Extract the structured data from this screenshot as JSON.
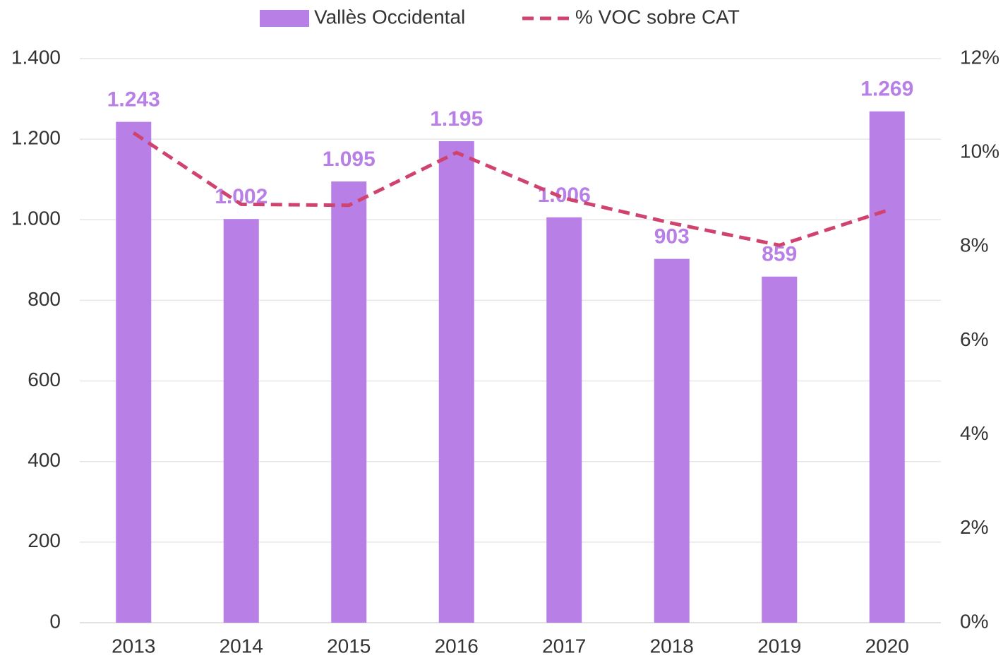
{
  "chart_data": {
    "type": "bar",
    "categories": [
      "2013",
      "2014",
      "2015",
      "2016",
      "2017",
      "2018",
      "2019",
      "2020"
    ],
    "series": [
      {
        "name": "Vallès Occidental",
        "type": "bar",
        "color": "#b87fe6",
        "values": [
          1243,
          1002,
          1095,
          1195,
          1006,
          903,
          859,
          1269
        ],
        "value_labels": [
          "1.243",
          "1.002",
          "1.095",
          "1.195",
          "1.006",
          "903",
          "859",
          "1.269"
        ]
      },
      {
        "name": "% VOC sobre CAT",
        "type": "line",
        "axis": "y2",
        "color": "#d1436f",
        "dashed": true,
        "values": [
          10.42,
          8.9,
          8.88,
          10.0,
          9.03,
          8.5,
          8.03,
          8.77
        ]
      }
    ],
    "ylim": [
      0,
      1400
    ],
    "yticks": [
      0,
      200,
      400,
      600,
      800,
      {
        "value": 1000,
        "label": "1.000"
      },
      {
        "value": 1200,
        "label": "1.200"
      },
      {
        "value": 1400,
        "label": "1.400"
      }
    ],
    "y2lim": [
      0,
      12
    ],
    "y2ticks": [
      {
        "value": 0,
        "label": "0%"
      },
      {
        "value": 2,
        "label": "2%"
      },
      {
        "value": 4,
        "label": "4%"
      },
      {
        "value": 6,
        "label": "6%"
      },
      {
        "value": 8,
        "label": "8%"
      },
      {
        "value": 10,
        "label": "10%"
      },
      {
        "value": 12,
        "label": "12%"
      }
    ],
    "grid": true,
    "legend": "top"
  }
}
